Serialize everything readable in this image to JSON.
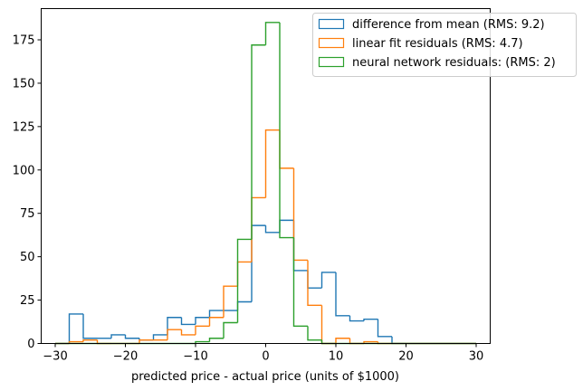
{
  "chart_data": {
    "type": "histogram",
    "title": "",
    "xlabel": "predicted price - actual price (units of $1000)",
    "ylabel": "",
    "xlim": [
      -32,
      32
    ],
    "ylim": [
      0,
      193
    ],
    "xticks": [
      -30,
      -20,
      -10,
      0,
      10,
      20,
      30
    ],
    "yticks": [
      0,
      25,
      50,
      75,
      100,
      125,
      150,
      175
    ],
    "grid": false,
    "legend_position": "top-right",
    "bins": {
      "start": -30,
      "width": 2,
      "count": 30
    },
    "bin_edges": [
      -30,
      -28,
      -26,
      -24,
      -22,
      -20,
      -18,
      -16,
      -14,
      -12,
      -10,
      -8,
      -6,
      -4,
      -2,
      0,
      2,
      4,
      6,
      8,
      10,
      12,
      14,
      16,
      18,
      20,
      22,
      24,
      26,
      28,
      30
    ],
    "series": [
      {
        "name": "difference from mean (RMS: 9.2)",
        "color": "#1f77b4",
        "counts": [
          0,
          17,
          3,
          3,
          5,
          3,
          2,
          5,
          15,
          11,
          15,
          19,
          19,
          24,
          68,
          64,
          71,
          42,
          32,
          41,
          16,
          13,
          14,
          4,
          0,
          0,
          0,
          0,
          0,
          0
        ]
      },
      {
        "name": "linear fit residuals (RMS: 4.7)",
        "color": "#ff7f0e",
        "counts": [
          0,
          1,
          2,
          0,
          0,
          0,
          2,
          2,
          8,
          5,
          10,
          15,
          33,
          47,
          84,
          123,
          101,
          48,
          22,
          0,
          3,
          0,
          1,
          0,
          0,
          0,
          0,
          0,
          0,
          0
        ]
      },
      {
        "name": "neural network residuals: (RMS: 2)",
        "color": "#2ca02c",
        "counts": [
          0,
          0,
          0,
          0,
          0,
          0,
          0,
          0,
          0,
          0,
          1,
          3,
          12,
          60,
          172,
          185,
          61,
          10,
          2,
          0,
          0,
          0,
          0,
          0,
          0,
          0,
          0,
          0,
          0,
          0
        ]
      }
    ]
  }
}
